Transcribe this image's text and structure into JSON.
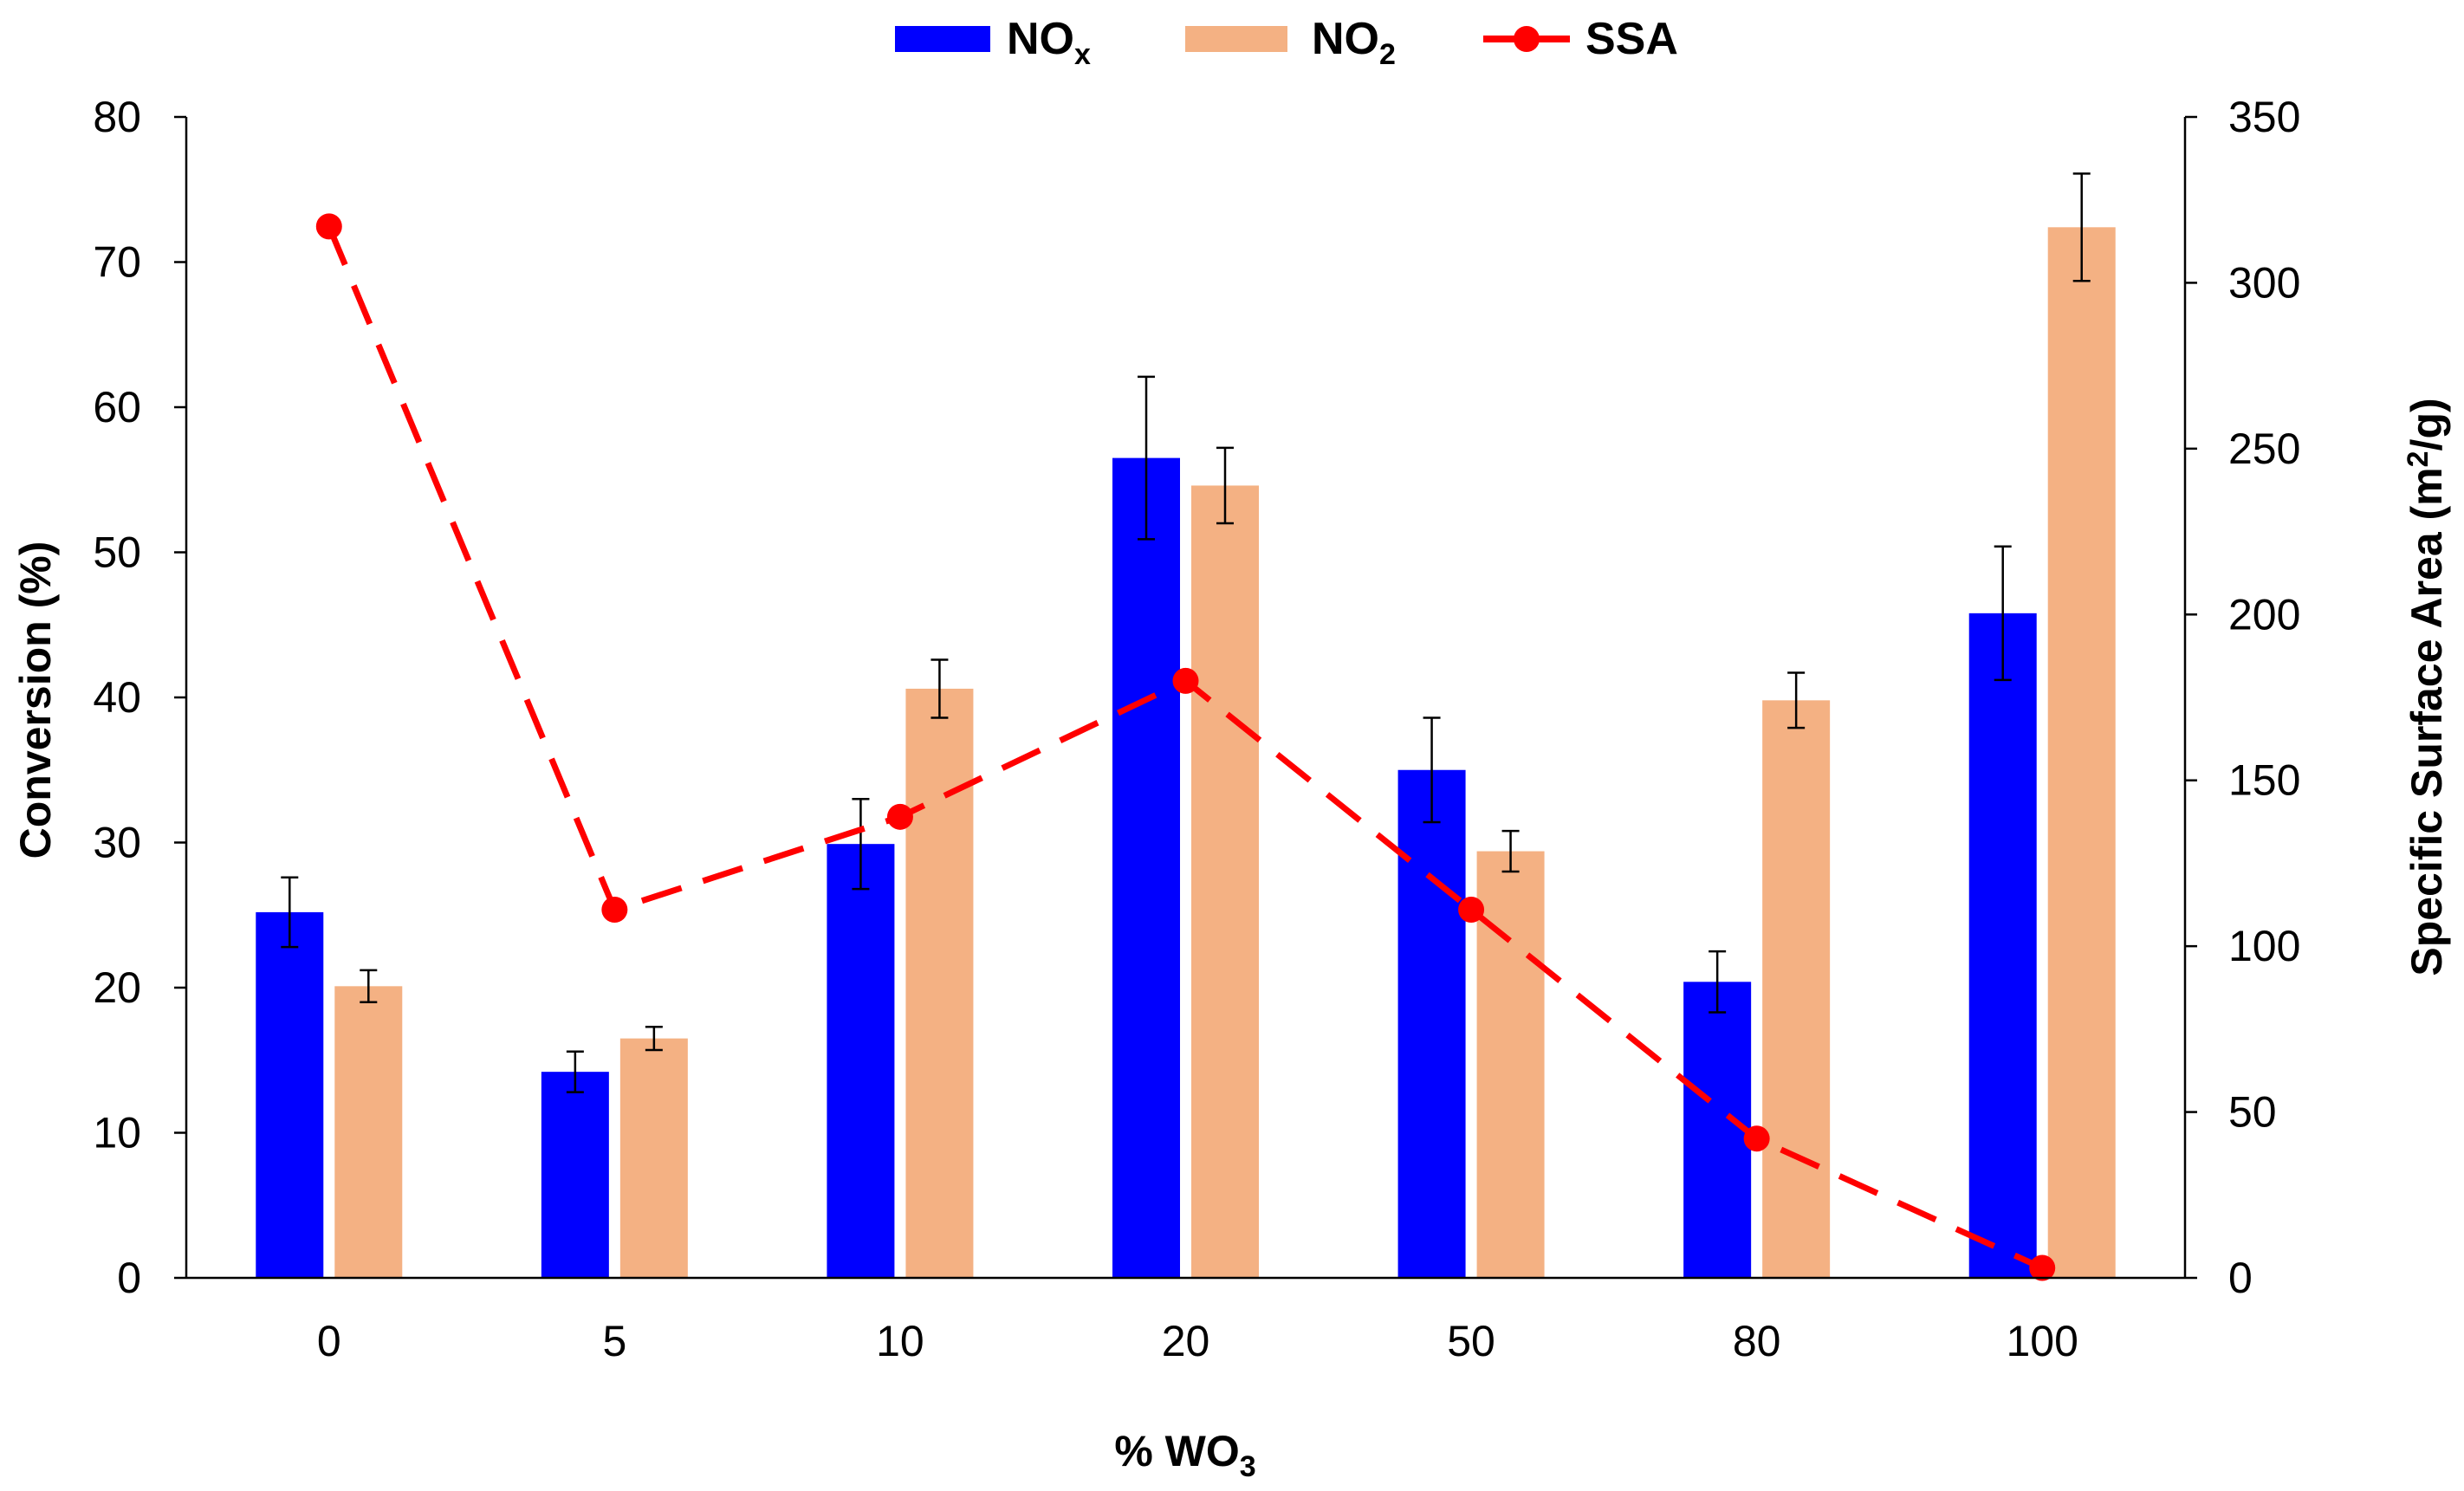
{
  "chart_data": {
    "type": "bar",
    "categories": [
      "0",
      "5",
      "10",
      "20",
      "50",
      "80",
      "100"
    ],
    "xlabel": {
      "main": "% WO",
      "sub": "3"
    },
    "ylabel_left": "Conversion (%)",
    "ylabel_right": {
      "main": "Specific Surface Area (m",
      "sup": "2",
      "tail": "/g)"
    },
    "ylim_left": [
      0,
      80
    ],
    "yticks_left": [
      0,
      10,
      20,
      30,
      40,
      50,
      60,
      70,
      80
    ],
    "ylim_right": [
      0,
      350
    ],
    "yticks_right": [
      0,
      50,
      100,
      150,
      200,
      250,
      300,
      350
    ],
    "grid": false,
    "legend_position": "top-center",
    "series": [
      {
        "name": {
          "main": "NO",
          "sub": "x"
        },
        "type": "bar",
        "axis": "left",
        "color": "#0000FF",
        "values": [
          25.2,
          14.2,
          29.9,
          56.5,
          35.0,
          20.4,
          45.8
        ],
        "errors": [
          2.4,
          1.4,
          3.1,
          5.6,
          3.6,
          2.1,
          4.6
        ]
      },
      {
        "name": {
          "main": "NO",
          "sub": "2"
        },
        "type": "bar",
        "axis": "left",
        "color": "#F4B183",
        "values": [
          20.1,
          16.5,
          40.6,
          54.6,
          29.4,
          39.8,
          72.4
        ],
        "errors": [
          1.1,
          0.8,
          2.0,
          2.6,
          1.4,
          1.9,
          3.7
        ]
      },
      {
        "name": {
          "main": "SSA"
        },
        "type": "line",
        "axis": "right",
        "color": "#FF0000",
        "line_style": "dashed",
        "marker": "circle",
        "values": [
          317,
          111,
          139,
          180,
          111,
          42,
          3
        ]
      }
    ]
  }
}
